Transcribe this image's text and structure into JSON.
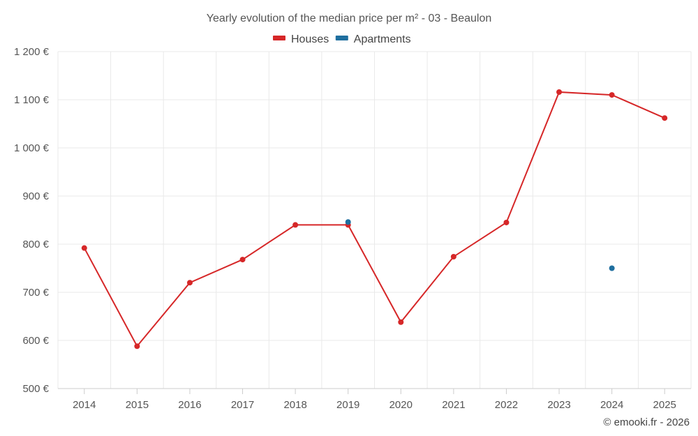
{
  "chart_data": {
    "type": "line",
    "title": "Yearly evolution of the median price per m² - 03 - Beaulon",
    "categories": [
      "2014",
      "2015",
      "2016",
      "2017",
      "2018",
      "2019",
      "2020",
      "2021",
      "2022",
      "2023",
      "2024",
      "2025"
    ],
    "series": [
      {
        "name": "Houses",
        "color": "#d62728",
        "values": [
          792,
          588,
          720,
          768,
          840,
          840,
          638,
          774,
          845,
          1116,
          1110,
          1062
        ]
      },
      {
        "name": "Apartments",
        "color": "#1f6f9f",
        "values": [
          null,
          null,
          null,
          null,
          null,
          846,
          null,
          null,
          null,
          null,
          750,
          null
        ]
      }
    ],
    "ylim": [
      500,
      1200
    ],
    "yticks": [
      500,
      600,
      700,
      800,
      900,
      1000,
      1100,
      1200
    ],
    "ytick_labels": [
      "500 €",
      "600 €",
      "700 €",
      "800 €",
      "900 €",
      "1 000 €",
      "1 100 €",
      "1 200 €"
    ],
    "xlabel": "",
    "ylabel": "",
    "grid": true,
    "legend_position": "top-center"
  },
  "credit": "© emooki.fr - 2026"
}
